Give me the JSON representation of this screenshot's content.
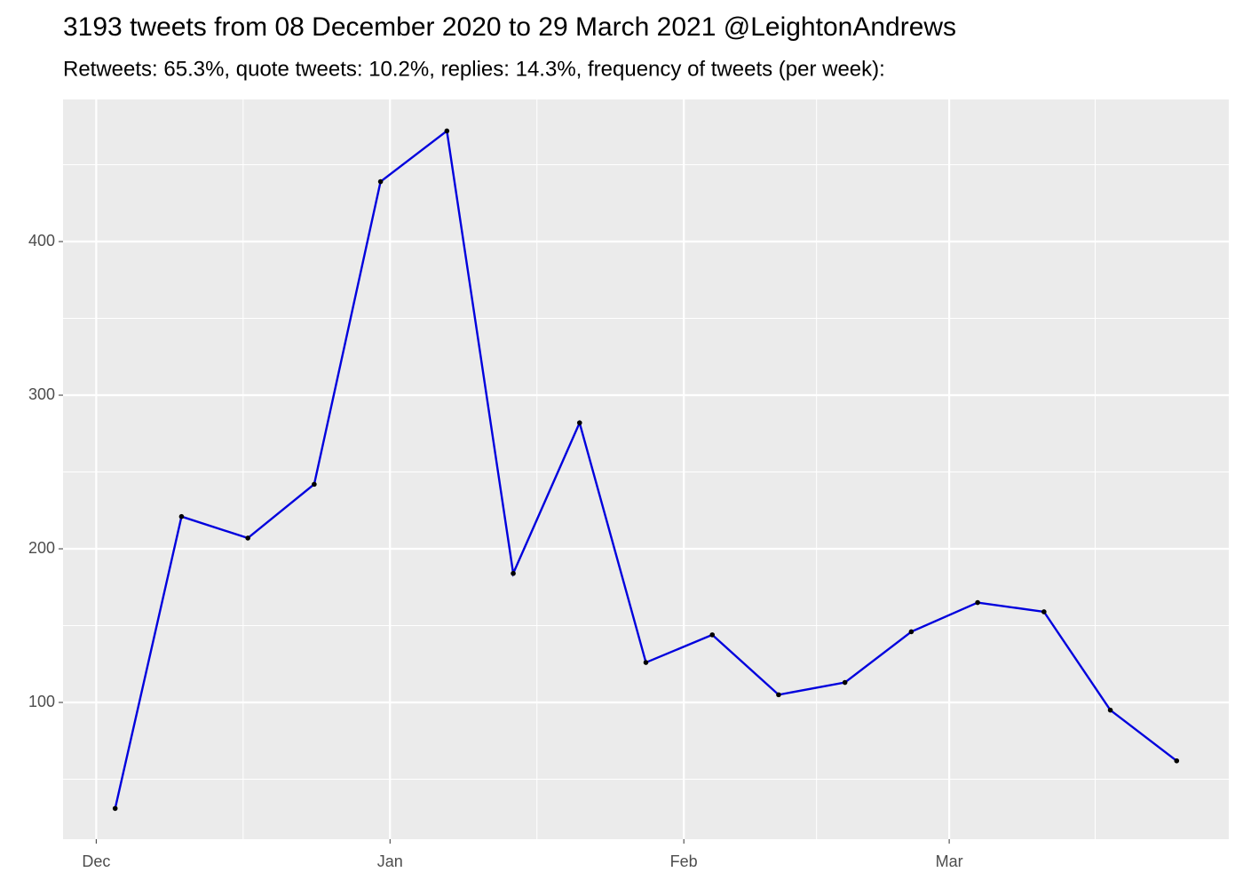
{
  "chart_data": {
    "type": "line",
    "title": "3193 tweets from 08 December 2020 to 29 March 2021 @LeightonAndrews",
    "subtitle": "Retweets: 65.3%, quote tweets: 10.2%, replies: 14.3%, frequency of tweets (per week):",
    "x": [
      "2020-12-03",
      "2020-12-10",
      "2020-12-17",
      "2020-12-24",
      "2020-12-31",
      "2021-01-07",
      "2021-01-14",
      "2021-01-21",
      "2021-01-28",
      "2021-02-04",
      "2021-02-11",
      "2021-02-18",
      "2021-02-25",
      "2021-03-04",
      "2021-03-11",
      "2021-03-18",
      "2021-03-25"
    ],
    "series": [
      {
        "color": "#0000dd",
        "values": [
          31,
          221,
          207,
          242,
          439,
          472,
          184,
          282,
          126,
          144,
          105,
          113,
          146,
          165,
          159,
          95,
          62
        ]
      }
    ],
    "xlim": [
      "2020-11-27T12:00",
      "2021-03-30T12:00"
    ],
    "xticks": [
      {
        "value": "2020-12-01",
        "label": "Dec"
      },
      {
        "value": "2021-01-01",
        "label": "Jan"
      },
      {
        "value": "2021-02-01",
        "label": "Feb"
      },
      {
        "value": "2021-03-01",
        "label": "Mar"
      }
    ],
    "ylim": [
      11,
      492.5
    ],
    "yticks": [
      100,
      200,
      300,
      400
    ],
    "grid": true
  }
}
